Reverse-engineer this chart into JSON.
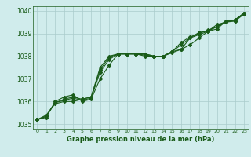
{
  "title": "Graphe pression niveau de la mer (hPa)",
  "bg_color": "#d0ecec",
  "plot_bg_color": "#d0ecec",
  "grid_color": "#aacccc",
  "line_color": "#1a5c1a",
  "marker_color": "#1a5c1a",
  "xlim": [
    -0.5,
    23.5
  ],
  "ylim": [
    1034.8,
    1040.2
  ],
  "yticks": [
    1035,
    1036,
    1037,
    1038,
    1039,
    1040
  ],
  "xticks": [
    0,
    1,
    2,
    3,
    4,
    5,
    6,
    7,
    8,
    9,
    10,
    11,
    12,
    13,
    14,
    15,
    16,
    17,
    18,
    19,
    20,
    21,
    22,
    23
  ],
  "series": [
    [
      1035.2,
      1035.4,
      1035.9,
      1036.0,
      1036.0,
      1036.1,
      1036.2,
      1037.5,
      1038.0,
      1038.1,
      1038.1,
      1038.1,
      1038.1,
      1038.0,
      1038.0,
      1038.2,
      1038.3,
      1038.5,
      1038.8,
      1039.1,
      1039.2,
      1039.55,
      1039.55,
      1039.85
    ],
    [
      1035.2,
      1035.3,
      1036.0,
      1036.2,
      1036.3,
      1036.0,
      1036.1,
      1037.0,
      1037.6,
      1038.1,
      1038.1,
      1038.1,
      1038.0,
      1038.0,
      1038.0,
      1038.15,
      1038.3,
      1038.8,
      1039.05,
      1039.1,
      1039.4,
      1039.5,
      1039.6,
      1039.9
    ],
    [
      1035.2,
      1035.35,
      1035.95,
      1036.05,
      1036.15,
      1036.05,
      1036.15,
      1037.3,
      1037.85,
      1038.1,
      1038.1,
      1038.1,
      1038.05,
      1038.0,
      1038.0,
      1038.2,
      1038.6,
      1038.85,
      1039.0,
      1039.15,
      1039.3,
      1039.55,
      1039.6,
      1039.9
    ],
    [
      1035.2,
      1035.35,
      1035.95,
      1036.1,
      1036.2,
      1036.1,
      1036.2,
      1037.4,
      1037.95,
      1038.1,
      1038.1,
      1038.1,
      1038.1,
      1038.0,
      1038.0,
      1038.2,
      1038.5,
      1038.8,
      1038.95,
      1039.1,
      1039.3,
      1039.5,
      1039.55,
      1039.9
    ]
  ],
  "xlabel_fontsize": 6.0,
  "ylabel_fontsize": 6.0,
  "xtick_fontsize": 4.5,
  "ytick_fontsize": 5.5,
  "linewidth": 0.8,
  "markersize": 2.0
}
